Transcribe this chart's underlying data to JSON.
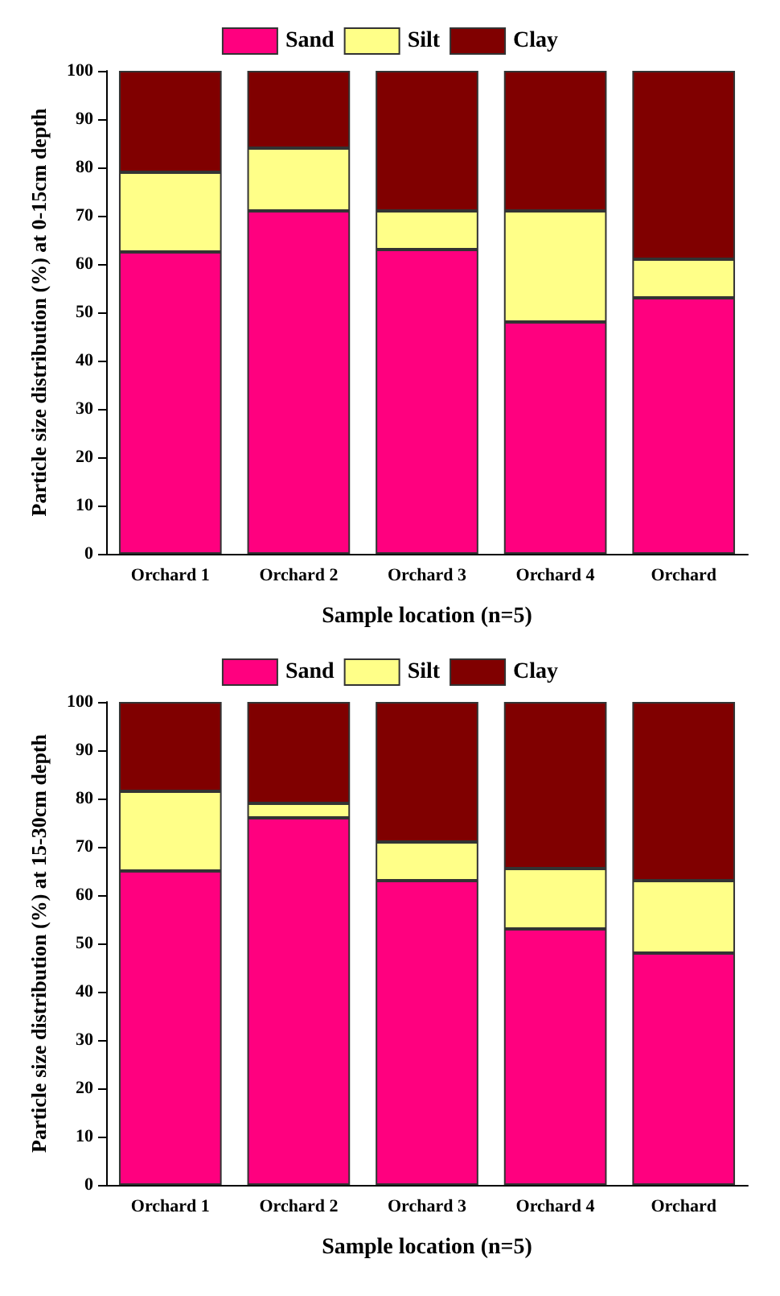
{
  "chart_data": [
    {
      "type": "bar",
      "stacked": true,
      "xlabel": "Sample location (n=5)",
      "ylabel": "Particle size distribution (%) at 0-15cm depth",
      "categories": [
        "Orchard 1",
        "Orchard 2",
        "Orchard 3",
        "Orchard 4",
        "Orchard"
      ],
      "series": [
        {
          "name": "Sand",
          "color": "#ff007f",
          "values": [
            62.5,
            71,
            63,
            48,
            53
          ]
        },
        {
          "name": "Silt",
          "color": "#ffff88",
          "values": [
            16.5,
            13,
            8,
            23,
            8
          ]
        },
        {
          "name": "Clay",
          "color": "#800000",
          "values": [
            21,
            16,
            29,
            29,
            39
          ]
        }
      ],
      "ylim": [
        0,
        100
      ],
      "yticks": [
        0,
        10,
        20,
        30,
        40,
        50,
        60,
        70,
        80,
        90,
        100
      ],
      "grid": false,
      "legend": "top"
    },
    {
      "type": "bar",
      "stacked": true,
      "xlabel": "Sample location (n=5)",
      "ylabel": "Particle size distribution (%) at 15-30cm depth",
      "categories": [
        "Orchard 1",
        "Orchard 2",
        "Orchard 3",
        "Orchard 4",
        "Orchard"
      ],
      "series": [
        {
          "name": "Sand",
          "color": "#ff007f",
          "values": [
            65,
            76,
            63,
            53,
            48
          ]
        },
        {
          "name": "Silt",
          "color": "#ffff88",
          "values": [
            16.5,
            3,
            8,
            12.5,
            15
          ]
        },
        {
          "name": "Clay",
          "color": "#800000",
          "values": [
            18.5,
            21,
            29,
            34.5,
            37
          ]
        }
      ],
      "ylim": [
        0,
        100
      ],
      "yticks": [
        0,
        10,
        20,
        30,
        40,
        50,
        60,
        70,
        80,
        90,
        100
      ],
      "grid": false,
      "legend": "top"
    }
  ]
}
